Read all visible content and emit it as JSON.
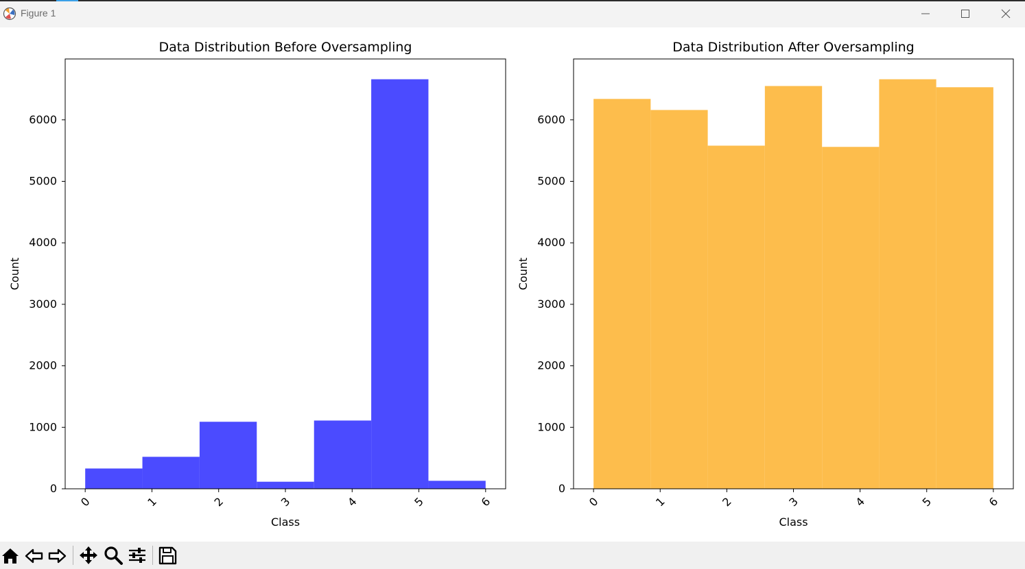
{
  "window": {
    "title": "Figure 1",
    "controls": {
      "minimize": "minimize",
      "maximize": "maximize",
      "close": "close"
    }
  },
  "toolbar": {
    "tools": [
      "home-icon",
      "back-icon",
      "forward-icon",
      "pan-icon",
      "zoom-icon",
      "configure-subplots-icon",
      "save-icon"
    ]
  },
  "chart_data": [
    {
      "type": "bar",
      "title": "Data Distribution Before Oversampling",
      "xlabel": "Class",
      "ylabel": "Count",
      "color": "#4b4bff",
      "x_ticks": [
        "0",
        "1",
        "2",
        "3",
        "4",
        "5",
        "6"
      ],
      "xlim": [
        -0.3,
        6.3
      ],
      "ylim": [
        0,
        6990
      ],
      "y_ticks": [
        0,
        1000,
        2000,
        3000,
        4000,
        5000,
        6000
      ],
      "bin_edges": [
        0,
        0.857,
        1.714,
        2.571,
        3.429,
        4.286,
        5.143,
        6
      ],
      "values": [
        330,
        520,
        1090,
        115,
        1110,
        6660,
        130
      ]
    },
    {
      "type": "bar",
      "title": "Data Distribution After Oversampling",
      "xlabel": "Class",
      "ylabel": "Count",
      "color": "#fdbd4c",
      "x_ticks": [
        "0",
        "1",
        "2",
        "3",
        "4",
        "5",
        "6"
      ],
      "xlim": [
        -0.3,
        6.3
      ],
      "ylim": [
        0,
        6990
      ],
      "y_ticks": [
        0,
        1000,
        2000,
        3000,
        4000,
        5000,
        6000
      ],
      "bin_edges": [
        0,
        0.857,
        1.714,
        2.571,
        3.429,
        4.286,
        5.143,
        6
      ],
      "values": [
        6340,
        6160,
        5580,
        6550,
        5560,
        6660,
        6530
      ]
    }
  ]
}
